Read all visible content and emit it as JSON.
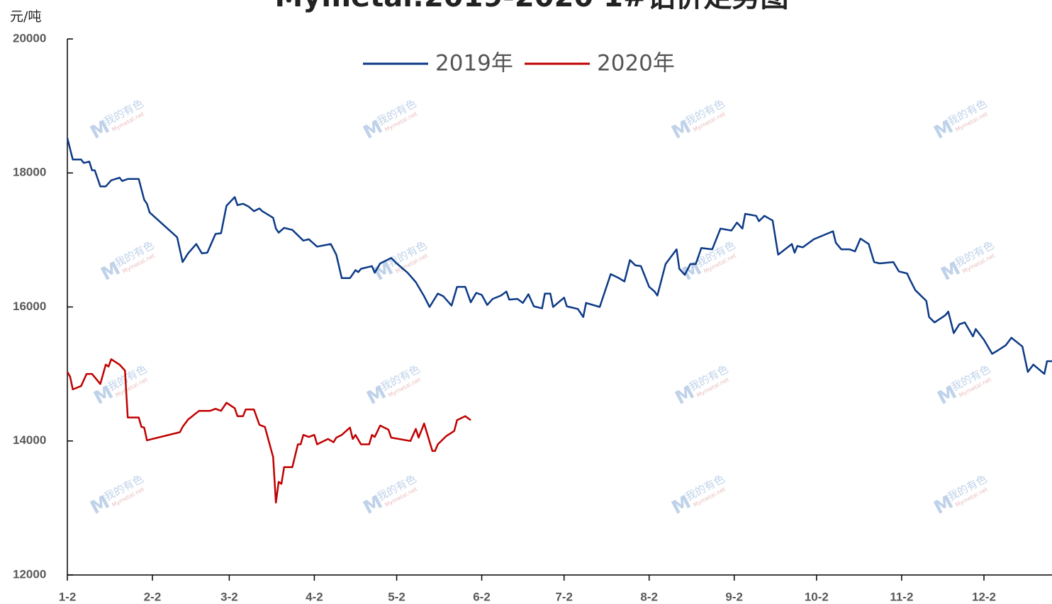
{
  "chart_data": {
    "type": "line",
    "title": "Mymetal:2019-2020 1#铝价走势图",
    "y_unit": "元/吨",
    "watermark": "我的有色",
    "watermark_sub": "Mymetal.net",
    "xlim": [
      0,
      359
    ],
    "xticks": [
      {
        "value": 0,
        "label": "1-2"
      },
      {
        "value": 31,
        "label": "2-2"
      },
      {
        "value": 59,
        "label": "3-2"
      },
      {
        "value": 90,
        "label": "4-2"
      },
      {
        "value": 120,
        "label": "5-2"
      },
      {
        "value": 151,
        "label": "6-2"
      },
      {
        "value": 181,
        "label": "7-2"
      },
      {
        "value": 212,
        "label": "8-2"
      },
      {
        "value": 243,
        "label": "9-2"
      },
      {
        "value": 273,
        "label": "10-2"
      },
      {
        "value": 304,
        "label": "11-2"
      },
      {
        "value": 334,
        "label": "12-2"
      }
    ],
    "ylim": [
      12000,
      20000
    ],
    "yticks": [
      12000,
      14000,
      16000,
      18000,
      20000
    ],
    "legend": "top",
    "series": [
      {
        "name": "2019年",
        "color": "#0c3a86",
        "x": [
          0,
          2,
          5,
          6,
          8,
          9,
          10,
          12,
          14,
          16,
          19,
          20,
          22,
          26,
          28,
          29,
          30,
          40,
          42,
          44,
          47,
          49,
          51,
          54,
          56,
          58,
          61,
          62,
          64,
          66,
          68,
          70,
          71,
          75,
          76,
          77,
          79,
          82,
          86,
          88,
          91,
          96,
          98,
          100,
          103,
          105,
          106,
          107,
          111,
          112,
          114,
          118,
          120,
          124,
          127,
          130,
          132,
          135,
          137,
          140,
          142,
          145,
          147,
          149,
          151,
          153,
          155,
          158,
          160,
          161,
          164,
          166,
          168,
          170,
          173,
          174,
          176,
          177,
          181,
          182,
          186,
          188,
          189,
          194,
          198,
          201,
          203,
          205,
          207,
          209,
          212,
          214,
          215,
          218,
          222,
          223,
          225,
          227,
          229,
          231,
          235,
          238,
          242,
          244,
          246,
          247,
          251,
          252,
          254,
          257,
          259,
          264,
          265,
          266,
          268,
          272,
          279,
          280,
          282,
          285,
          287,
          289,
          292,
          294,
          296,
          301,
          303,
          306,
          307,
          309,
          313,
          314,
          316,
          319,
          320,
          321,
          323,
          325,
          327,
          330,
          331,
          334,
          337,
          339,
          342,
          344,
          348,
          350,
          352,
          356,
          357,
          359
        ],
        "values": [
          18520,
          18200,
          18200,
          18150,
          18170,
          18040,
          18040,
          17800,
          17800,
          17890,
          17930,
          17880,
          17910,
          17910,
          17600,
          17540,
          17410,
          17040,
          16670,
          16800,
          16940,
          16800,
          16810,
          17090,
          17100,
          17510,
          17640,
          17520,
          17540,
          17500,
          17430,
          17470,
          17430,
          17330,
          17170,
          17110,
          17180,
          17150,
          16990,
          17010,
          16900,
          16940,
          16780,
          16430,
          16430,
          16550,
          16520,
          16570,
          16610,
          16510,
          16650,
          16730,
          16650,
          16510,
          16370,
          16160,
          16000,
          16200,
          16160,
          16020,
          16300,
          16300,
          16070,
          16210,
          16180,
          16030,
          16120,
          16170,
          16230,
          16110,
          16120,
          16060,
          16190,
          16010,
          15980,
          16200,
          16200,
          16000,
          16140,
          16010,
          15970,
          15850,
          16060,
          16000,
          16490,
          16430,
          16380,
          16700,
          16620,
          16610,
          16300,
          16230,
          16170,
          16640,
          16860,
          16570,
          16480,
          16640,
          16640,
          16880,
          16860,
          17170,
          17140,
          17260,
          17170,
          17390,
          17360,
          17280,
          17360,
          17290,
          16780,
          16940,
          16810,
          16910,
          16890,
          17010,
          17130,
          16960,
          16860,
          16860,
          16830,
          17020,
          16940,
          16670,
          16650,
          16670,
          16530,
          16500,
          16410,
          16250,
          16090,
          15850,
          15770,
          15850,
          15880,
          15930,
          15610,
          15740,
          15770,
          15560,
          15670,
          15510,
          15300,
          15350,
          15430,
          15540,
          15410,
          15030,
          15140,
          15000,
          15190,
          15190
        ]
      },
      {
        "name": "2020年",
        "color": "#c00000",
        "x": [
          0,
          1,
          2,
          5,
          7,
          9,
          12,
          14,
          15,
          16,
          19,
          21,
          22,
          26,
          27,
          28,
          29,
          41,
          42,
          44,
          48,
          52,
          54,
          56,
          58,
          61,
          62,
          64,
          65,
          68,
          70,
          72,
          75,
          76,
          77,
          78,
          79,
          82,
          84,
          85,
          86,
          88,
          90,
          91,
          95,
          97,
          98,
          100,
          103,
          104,
          105,
          107,
          110,
          111,
          112,
          114,
          117,
          118,
          125,
          127,
          128,
          130,
          133,
          134,
          135,
          138,
          141,
          142,
          145,
          147
        ],
        "values": [
          15030,
          14960,
          14770,
          14820,
          15000,
          15000,
          14850,
          15140,
          15110,
          15220,
          15140,
          15050,
          14350,
          14350,
          14210,
          14200,
          14010,
          14130,
          14210,
          14320,
          14450,
          14450,
          14480,
          14450,
          14570,
          14490,
          14370,
          14370,
          14470,
          14470,
          14240,
          14210,
          13760,
          13080,
          13390,
          13360,
          13610,
          13610,
          13950,
          13950,
          14090,
          14060,
          14090,
          13950,
          14030,
          13980,
          14050,
          14090,
          14200,
          14030,
          14090,
          13950,
          13950,
          14090,
          14060,
          14230,
          14170,
          14050,
          14000,
          14180,
          14050,
          14260,
          13850,
          13850,
          13950,
          14070,
          14150,
          14310,
          14370,
          14310
        ]
      }
    ]
  }
}
